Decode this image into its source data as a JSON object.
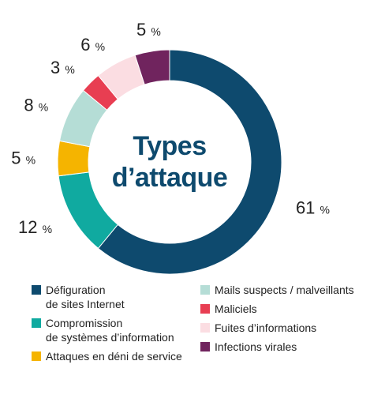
{
  "title_lines": [
    "Types",
    "d’attaque"
  ],
  "chart_data": {
    "type": "pie",
    "unit": "%",
    "slices": [
      {
        "label": "Défiguration\nde sites Internet",
        "value": 61,
        "color": "#0e4a6e"
      },
      {
        "label": "Compromission\nde systèmes d’information",
        "value": 12,
        "color": "#10aaa0"
      },
      {
        "label": "Attaques en déni de service",
        "value": 5,
        "color": "#f5b400"
      },
      {
        "label": "Mails suspects / malveillants",
        "value": 8,
        "color": "#b5ddd6"
      },
      {
        "label": "Maliciels",
        "value": 3,
        "color": "#e83e52"
      },
      {
        "label": "Fuites d’informations",
        "value": 6,
        "color": "#fbdde2"
      },
      {
        "label": "Infections virales",
        "value": 5,
        "color": "#70245e"
      }
    ]
  }
}
